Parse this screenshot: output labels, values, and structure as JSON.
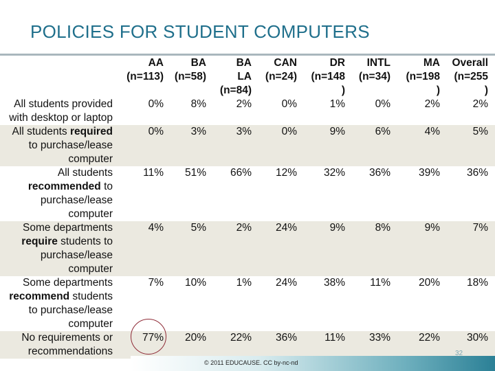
{
  "title": "POLICIES FOR STUDENT COMPUTERS",
  "columns": [
    [
      "AA",
      "(n=113)"
    ],
    [
      "BA",
      "(n=58)"
    ],
    [
      "BA",
      "LA",
      "(n=84)"
    ],
    [
      "CAN",
      "(n=24)"
    ],
    [
      "DR",
      "(n=148",
      ")"
    ],
    [
      "INTL",
      "(n=34)"
    ],
    [
      "MA",
      "(n=198",
      ")"
    ],
    [
      "Overall",
      "(n=255",
      ")"
    ]
  ],
  "rows": [
    {
      "label": [
        [
          {
            "t": "All students provided"
          }
        ],
        [
          {
            "t": "with desktop or laptop"
          }
        ]
      ],
      "values": [
        "0%",
        "8%",
        "2%",
        "0%",
        "1%",
        "0%",
        "2%",
        "2%"
      ]
    },
    {
      "label": [
        [
          {
            "t": "All students "
          },
          {
            "t": "required",
            "b": true
          }
        ],
        [
          {
            "t": "to purchase/lease"
          }
        ],
        [
          {
            "t": "computer"
          }
        ]
      ],
      "values": [
        "0%",
        "3%",
        "3%",
        "0%",
        "9%",
        "6%",
        "4%",
        "5%"
      ]
    },
    {
      "label": [
        [
          {
            "t": "All students"
          }
        ],
        [
          {
            "t": "recommended",
            "b": true
          },
          {
            "t": " to"
          }
        ],
        [
          {
            "t": "purchase/lease"
          }
        ],
        [
          {
            "t": "computer"
          }
        ]
      ],
      "values": [
        "11%",
        "51%",
        "66%",
        "12%",
        "32%",
        "36%",
        "39%",
        "36%"
      ]
    },
    {
      "label": [
        [
          {
            "t": "Some departments"
          }
        ],
        [
          {
            "t": "require",
            "b": true
          },
          {
            "t": " students to"
          }
        ],
        [
          {
            "t": "purchase/lease"
          }
        ],
        [
          {
            "t": "computer"
          }
        ]
      ],
      "values": [
        "4%",
        "5%",
        "2%",
        "24%",
        "9%",
        "8%",
        "9%",
        "7%"
      ]
    },
    {
      "label": [
        [
          {
            "t": "Some departments"
          }
        ],
        [
          {
            "t": "recommend",
            "b": true
          },
          {
            "t": " students"
          }
        ],
        [
          {
            "t": "to purchase/lease"
          }
        ],
        [
          {
            "t": "computer"
          }
        ]
      ],
      "values": [
        "7%",
        "10%",
        "1%",
        "24%",
        "38%",
        "11%",
        "20%",
        "18%"
      ]
    },
    {
      "label": [
        [
          {
            "t": "No requirements or"
          }
        ],
        [
          {
            "t": "recommendations"
          }
        ]
      ],
      "values": [
        "77%",
        "20%",
        "22%",
        "36%",
        "11%",
        "33%",
        "22%",
        "30%"
      ]
    }
  ],
  "footer": "© 2011 EDUCAUSE. CC by-nc-nd",
  "page_number": "32"
}
